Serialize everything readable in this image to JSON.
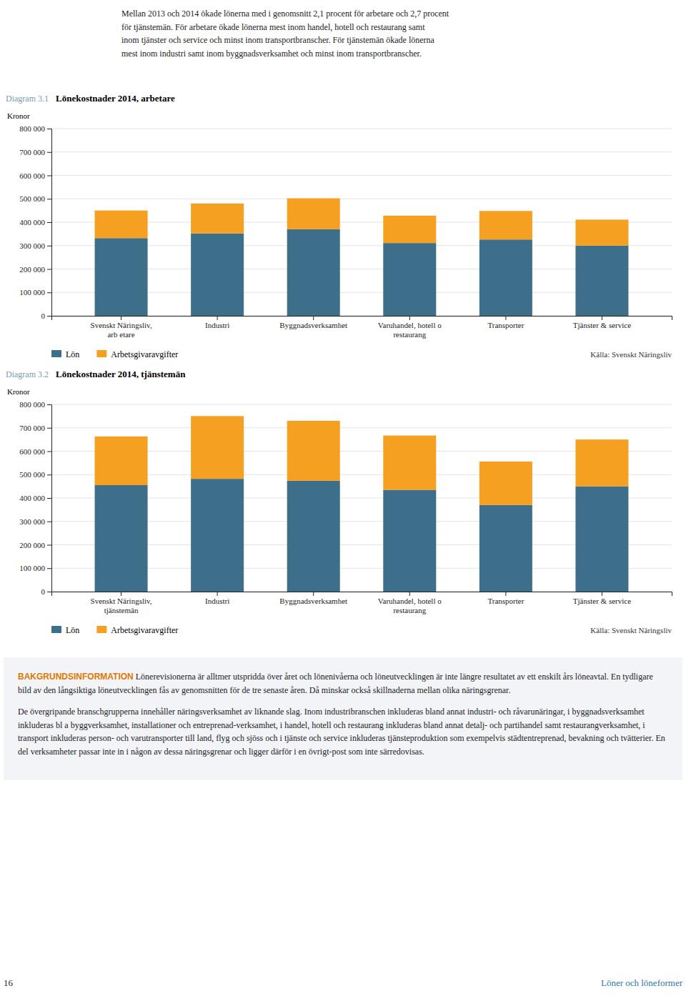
{
  "intro": [
    "Mellan 2013 och 2014 ökade lönerna med i genomsnitt 2,1 procent för arbetare och 2,7 procent",
    "för tjänstemän. För arbetare ökade lönerna mest inom handel, hotell och restaurang samt",
    "inom tjänster och service och minst inom transportbranscher. För tjänstemän ökade lönerna",
    "mest inom industri samt inom byggnadsverksamhet och minst inom transportbranscher."
  ],
  "background_label": "BAKGRUNDSINFORMATION",
  "background_text": [
    "Lönerevisionerna är alltmer utspridda över året och lönenivåerna och löneutvecklingen är inte längre resultatet av ett enskilt års löneavtal. En tydligare bild av den långsiktiga löneutvecklingen fås av genomsnitten för de tre senaste åren. Då minskar också skillnaderna mellan olika näringsgrenar.",
    "De övergripande branschgrupperna innehåller näringsverksamhet av liknande slag. Inom industribranschen inkluderas bland annat industri- och råvarunäringar, i byggnadsverksamhet inkluderas bl a byggverksamhet, installationer och entreprenad-verksamhet, i handel, hotell och restaurang inkluderas bland annat detalj- och partihandel samt restaurangverksamhet, i transport inkluderas person- och varutransporter till land, flyg och sjöss och i tjänste och service inkluderas tjänsteproduktion som exempelvis städtentreprenad, bevakning och tvätterier. En del verksamheter passar inte in i någon av dessa näringsgrenar och ligger därför i en övrigt-post som inte särredovisas."
  ],
  "page_number": "16",
  "page_footer": "Löner och löneformer",
  "chart_data": [
    {
      "type": "bar",
      "stacked": true,
      "title": "Lönekostnader 2014, arbetare",
      "annotations": [
        "Diagram 3.1",
        "Källa: Svenskt Näringsliv"
      ],
      "ylabel": "Kronor",
      "categories": [
        "Svenskt Näringsliv,\narb etare",
        "Industri",
        "Byggnadsverksamhet",
        "Varuhandel, hotell o\nrestaurang",
        "Transporter",
        "Tjänster & service"
      ],
      "series": [
        {
          "name": "Lön",
          "color": "#3d6f8a",
          "values": [
            332000,
            352000,
            370000,
            311000,
            326000,
            300000
          ]
        },
        {
          "name": "Arbetsgivaravgifter",
          "color": "#f5a020",
          "values": [
            118000,
            128000,
            132000,
            117000,
            122000,
            111000
          ]
        }
      ],
      "ylim": [
        0,
        800000
      ],
      "yticks": [
        0,
        {
          "value": 100000,
          "label": "100 000"
        },
        {
          "value": 200000,
          "label": "200 000"
        },
        {
          "value": 300000,
          "label": "300 000"
        },
        {
          "value": 400000,
          "label": "400 000"
        },
        {
          "value": 500000,
          "label": "500 000"
        },
        {
          "value": 600000,
          "label": "600 000"
        },
        {
          "value": 700000,
          "label": "700 000"
        },
        {
          "value": 800000,
          "label": "800 000"
        }
      ],
      "grid": true,
      "legend": "bottom"
    },
    {
      "type": "bar",
      "stacked": true,
      "title": "Lönekostnader 2014, tjänstemän",
      "annotations": [
        "Diagram 3.2",
        "Källa: Svenskt Näringsliv"
      ],
      "ylabel": "Kronor",
      "categories": [
        "Svenskt Näringsliv,\ntjänstemän",
        "Industri",
        "Byggnadsverksamhet",
        "Varuhandel, hotell o\nrestaurang",
        "Transporter",
        "Tjänster & service"
      ],
      "series": [
        {
          "name": "Lön",
          "color": "#3d6f8a",
          "values": [
            455000,
            482000,
            474000,
            435000,
            370000,
            450000
          ]
        },
        {
          "name": "Arbetsgivaravgifter",
          "color": "#f5a020",
          "values": [
            208000,
            268000,
            256000,
            232000,
            186000,
            200000
          ]
        }
      ],
      "ylim": [
        0,
        800000
      ],
      "yticks": [
        0,
        {
          "value": 100000,
          "label": "100 000"
        },
        {
          "value": 200000,
          "label": "200 000"
        },
        {
          "value": 300000,
          "label": "300 000"
        },
        {
          "value": 400000,
          "label": "400 000"
        },
        {
          "value": 500000,
          "label": "500 000"
        },
        {
          "value": 600000,
          "label": "600 000"
        },
        {
          "value": 700000,
          "label": "700 000"
        },
        {
          "value": 800000,
          "label": "800 000"
        }
      ],
      "grid": true,
      "legend": "bottom"
    }
  ]
}
